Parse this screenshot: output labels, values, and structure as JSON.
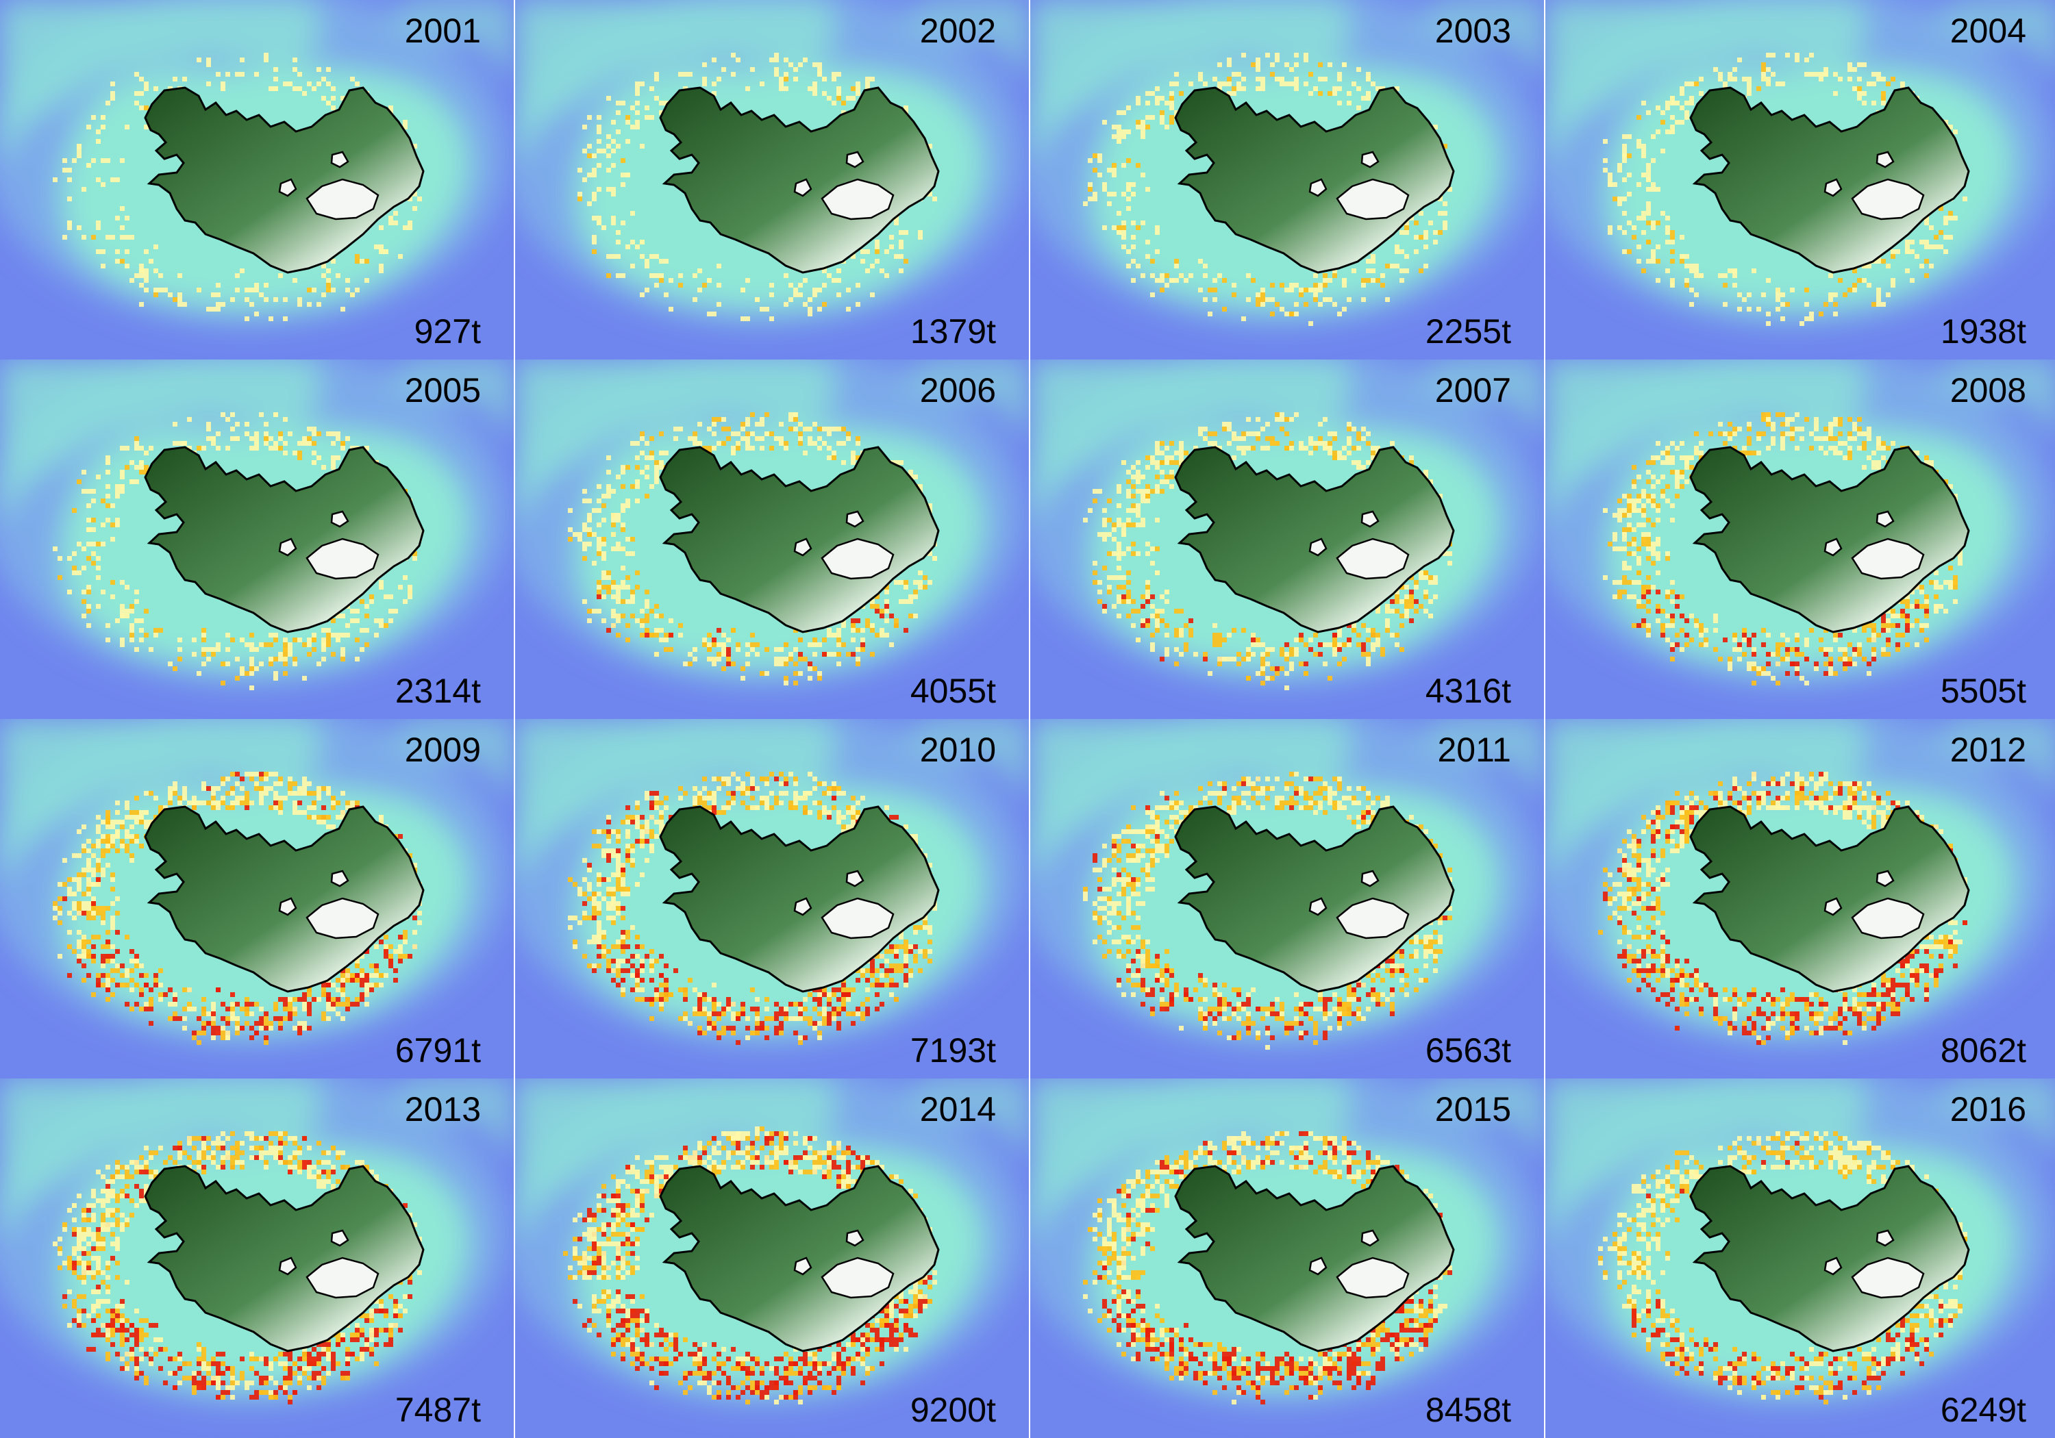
{
  "colors": {
    "deep_ocean": "#6f86ee",
    "shelf": "#8fe8d6",
    "slope": "#7fb3ea",
    "land_dark": "#1f4f1f",
    "land_light": "#dfeee0",
    "glacier": "#f4f7f4",
    "coast_line": "#000000",
    "catch_low": "#fff7a8",
    "catch_mid": "#ffbf1a",
    "catch_high": "#e8200a"
  },
  "panels": [
    {
      "year": "2001",
      "catch": "927t",
      "catch_tonnes": 927
    },
    {
      "year": "2002",
      "catch": "1379t",
      "catch_tonnes": 1379
    },
    {
      "year": "2003",
      "catch": "2255t",
      "catch_tonnes": 2255
    },
    {
      "year": "2004",
      "catch": "1938t",
      "catch_tonnes": 1938
    },
    {
      "year": "2005",
      "catch": "2314t",
      "catch_tonnes": 2314
    },
    {
      "year": "2006",
      "catch": "4055t",
      "catch_tonnes": 4055
    },
    {
      "year": "2007",
      "catch": "4316t",
      "catch_tonnes": 4316
    },
    {
      "year": "2008",
      "catch": "5505t",
      "catch_tonnes": 5505
    },
    {
      "year": "2009",
      "catch": "6791t",
      "catch_tonnes": 6791
    },
    {
      "year": "2010",
      "catch": "7193t",
      "catch_tonnes": 7193
    },
    {
      "year": "2011",
      "catch": "6563t",
      "catch_tonnes": 6563
    },
    {
      "year": "2012",
      "catch": "8062t",
      "catch_tonnes": 8062
    },
    {
      "year": "2013",
      "catch": "7487t",
      "catch_tonnes": 7487
    },
    {
      "year": "2014",
      "catch": "9200t",
      "catch_tonnes": 9200
    },
    {
      "year": "2015",
      "catch": "8458t",
      "catch_tonnes": 8458
    },
    {
      "year": "2016",
      "catch": "6249t",
      "catch_tonnes": 6249
    }
  ]
}
